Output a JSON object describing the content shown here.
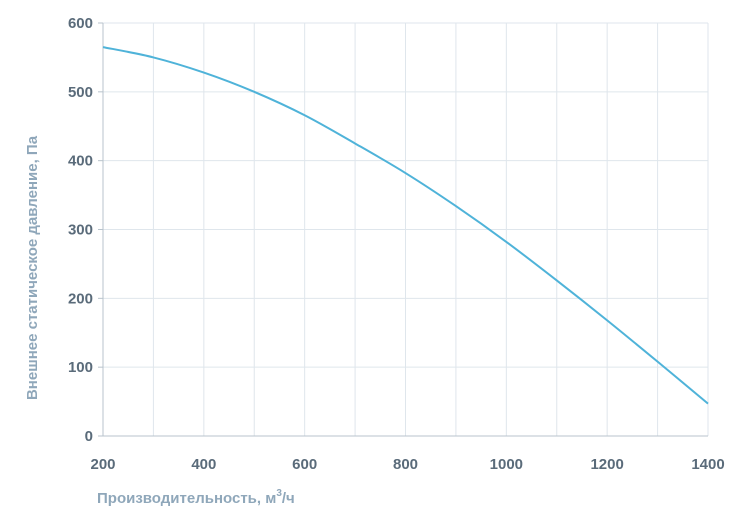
{
  "chart_data": {
    "type": "line",
    "xlabel": "Производительность, м",
    "xlabel_sup": "3",
    "xlabel_tail": "/ч",
    "ylabel": "Внешнее статическое давление, Па",
    "xlim": [
      200,
      1400
    ],
    "ylim": [
      0,
      600
    ],
    "x_ticks": [
      200,
      400,
      600,
      800,
      1000,
      1200,
      1400
    ],
    "y_ticks": [
      0,
      100,
      200,
      300,
      400,
      500,
      600
    ],
    "grid": true,
    "series": [
      {
        "color": "#4fb3d9",
        "x": [
          200,
          300,
          400,
          500,
          600,
          700,
          800,
          900,
          1000,
          1100,
          1200,
          1300,
          1400
        ],
        "y": [
          565,
          550,
          528,
          500,
          466,
          425,
          382,
          334,
          282,
          226,
          168,
          108,
          47
        ]
      }
    ]
  }
}
